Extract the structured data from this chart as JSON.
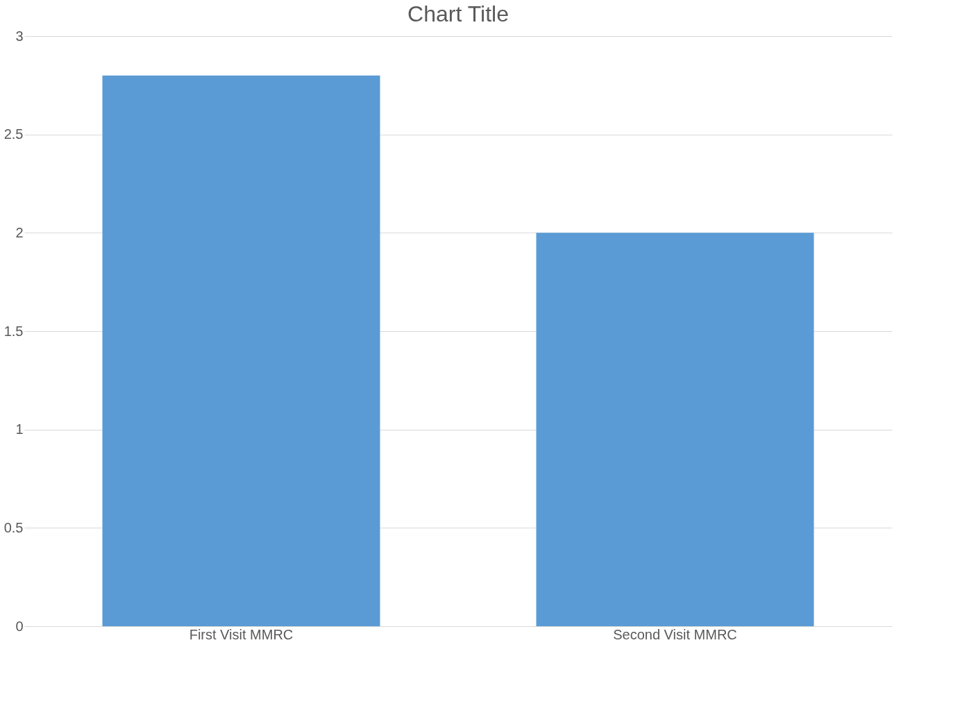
{
  "chart_data": {
    "type": "bar",
    "title": "Chart Title",
    "categories": [
      "First Visit MMRC",
      "Second Visit MMRC"
    ],
    "values": [
      2.8,
      2.0
    ],
    "color": "#5b9bd5",
    "ylim": [
      0,
      3
    ],
    "yticks": [
      0,
      0.5,
      1,
      1.5,
      2,
      2.5,
      3
    ],
    "grid": "y"
  }
}
